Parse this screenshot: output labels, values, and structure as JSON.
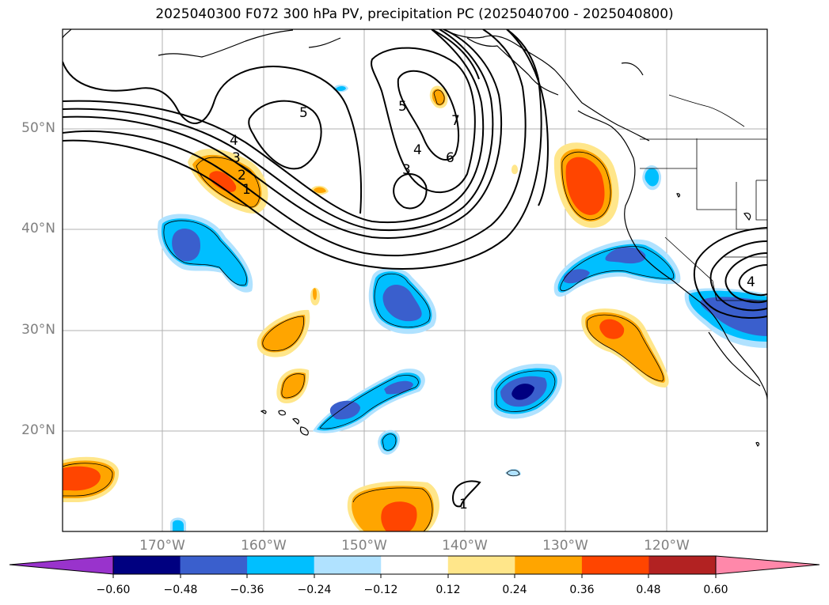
{
  "title": "2025040300 F072 300 hPa PV, precipitation PC (2025040700 - 2025040800)",
  "axes": {
    "lat_labels": [
      "50°N",
      "40°N",
      "30°N",
      "20°N"
    ],
    "lon_labels": [
      "170°W",
      "160°W",
      "150°W",
      "140°W",
      "130°W",
      "120°W"
    ]
  },
  "contour_labels": [
    "4",
    "3",
    "2",
    "1",
    "5",
    "5",
    "4",
    "3",
    "7",
    "6",
    "1",
    "4"
  ],
  "colorbar": {
    "ticks": [
      "−0.60",
      "−0.48",
      "−0.36",
      "−0.24",
      "−0.12",
      "0.12",
      "0.24",
      "0.36",
      "0.48",
      "0.60"
    ],
    "colors": [
      "#9933cc",
      "#000080",
      "#3a5fcd",
      "#00bfff",
      "#b0e2ff",
      "#ffffff",
      "#ffe68a",
      "#ffa500",
      "#ff4500",
      "#b22222",
      "#ff88aa"
    ]
  }
}
